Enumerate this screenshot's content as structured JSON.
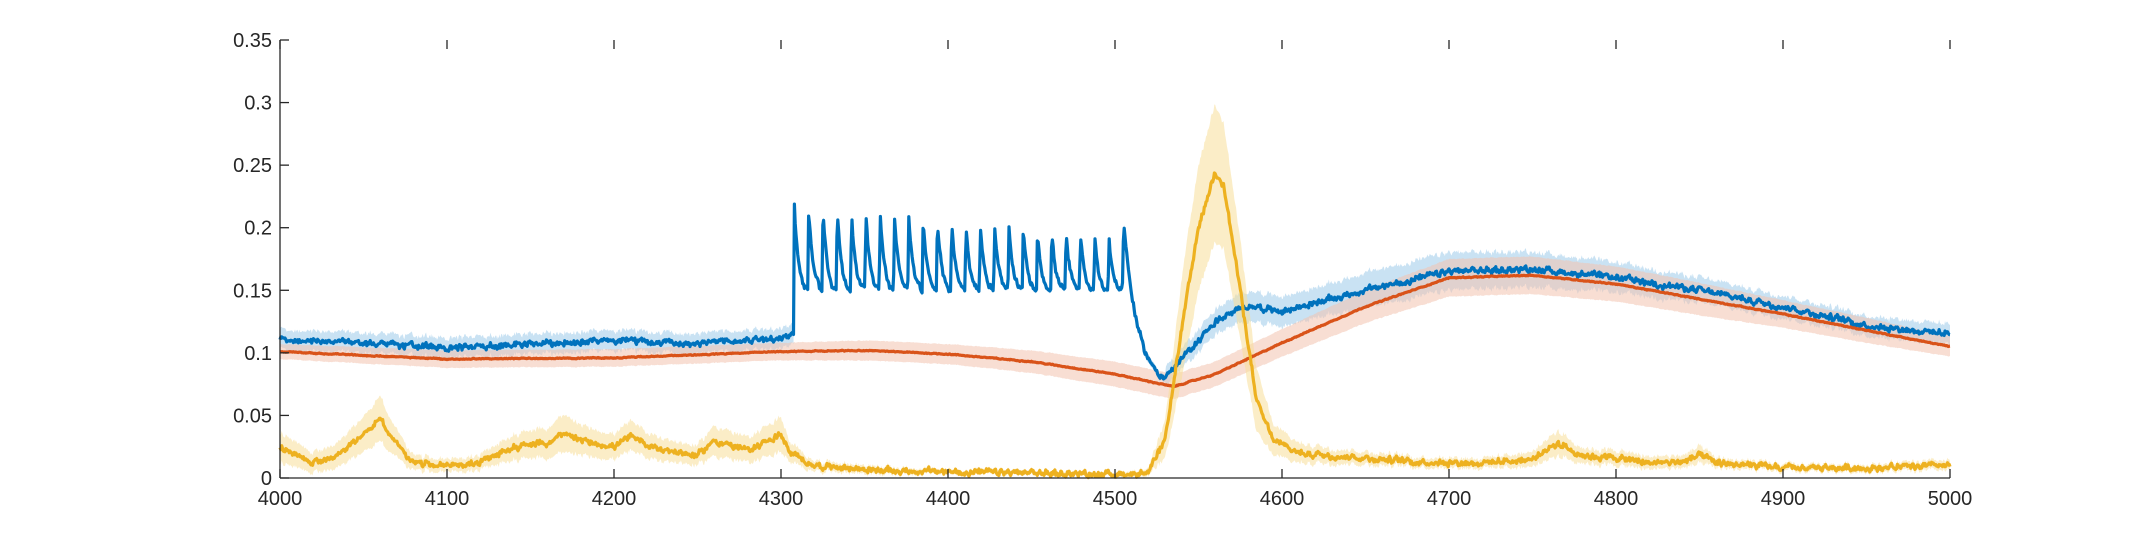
{
  "chart_data": {
    "type": "line",
    "title": "",
    "xlabel": "",
    "ylabel": "",
    "xlim": [
      4000,
      5000
    ],
    "ylim": [
      0,
      0.35
    ],
    "xticks": [
      4000,
      4100,
      4200,
      4300,
      4400,
      4500,
      4600,
      4700,
      4800,
      4900,
      5000
    ],
    "yticks": [
      0,
      0.05,
      0.1,
      0.15,
      0.2,
      0.25,
      0.3,
      0.35
    ],
    "xtick_labels": [
      "4000",
      "4100",
      "4200",
      "4300",
      "4400",
      "4500",
      "4600",
      "4700",
      "4800",
      "4900",
      "5000"
    ],
    "ytick_labels": [
      "0",
      "0.05",
      "0.1",
      "0.15",
      "0.2",
      "0.25",
      "0.3",
      "0.35"
    ],
    "grid": false,
    "box": false,
    "series": [
      {
        "color": "#0072BD",
        "band_color": "#9DCBEA",
        "noise": 0.004,
        "sawtooth": {
          "start": 4308,
          "end": 4505,
          "peaks": 23,
          "peak": 0.218,
          "trough": 0.148,
          "decay_to": 0.08,
          "decay_end": 4530
        },
        "x": [
          4000,
          4050,
          4100,
          4150,
          4200,
          4250,
          4300,
          4307,
          4530,
          4540,
          4560,
          4580,
          4600,
          4620,
          4650,
          4700,
          4750,
          4800,
          4850,
          4900,
          4950,
          5000
        ],
        "y": [
          0.11,
          0.108,
          0.104,
          0.107,
          0.11,
          0.108,
          0.112,
          0.115,
          0.08,
          0.095,
          0.125,
          0.138,
          0.133,
          0.14,
          0.15,
          0.165,
          0.167,
          0.16,
          0.15,
          0.137,
          0.122,
          0.115
        ],
        "band": [
          0.008,
          0.008,
          0.008,
          0.008,
          0.008,
          0.008,
          0.008,
          0.008,
          0.008,
          0.008,
          0.01,
          0.012,
          0.012,
          0.012,
          0.014,
          0.015,
          0.014,
          0.012,
          0.01,
          0.009,
          0.008,
          0.008
        ]
      },
      {
        "color": "#D95319",
        "band_color": "#F2C2AE",
        "noise": 0.0006,
        "x": [
          4000,
          4100,
          4200,
          4300,
          4350,
          4400,
          4450,
          4500,
          4535,
          4560,
          4600,
          4650,
          4700,
          4750,
          4800,
          4850,
          4900,
          4950,
          5000
        ],
        "y": [
          0.101,
          0.095,
          0.096,
          0.101,
          0.102,
          0.099,
          0.093,
          0.083,
          0.073,
          0.083,
          0.108,
          0.137,
          0.16,
          0.162,
          0.155,
          0.143,
          0.131,
          0.118,
          0.105
        ],
        "band": [
          0.006,
          0.007,
          0.007,
          0.007,
          0.008,
          0.008,
          0.009,
          0.01,
          0.01,
          0.01,
          0.011,
          0.013,
          0.015,
          0.015,
          0.014,
          0.013,
          0.011,
          0.01,
          0.008
        ]
      },
      {
        "color": "#EDB120",
        "band_color": "#F7DE99",
        "noise": 0.004,
        "x": [
          4000,
          4010,
          4020,
          4035,
          4050,
          4060,
          4068,
          4080,
          4100,
          4120,
          4140,
          4160,
          4170,
          4180,
          4200,
          4210,
          4220,
          4240,
          4250,
          4260,
          4280,
          4300,
          4305,
          4320,
          4360,
          4400,
          4450,
          4500,
          4520,
          4530,
          4540,
          4550,
          4560,
          4565,
          4575,
          4585,
          4595,
          4610,
          4630,
          4680,
          4720,
          4750,
          4765,
          4780,
          4800,
          4820,
          4840,
          4850,
          4860,
          4900,
          4950,
          5000
        ],
        "y": [
          0.025,
          0.018,
          0.012,
          0.018,
          0.035,
          0.048,
          0.03,
          0.012,
          0.01,
          0.012,
          0.025,
          0.028,
          0.035,
          0.03,
          0.025,
          0.033,
          0.026,
          0.02,
          0.018,
          0.03,
          0.022,
          0.035,
          0.02,
          0.01,
          0.006,
          0.005,
          0.004,
          0.003,
          0.004,
          0.03,
          0.12,
          0.2,
          0.245,
          0.235,
          0.15,
          0.06,
          0.03,
          0.02,
          0.018,
          0.013,
          0.012,
          0.015,
          0.028,
          0.018,
          0.016,
          0.012,
          0.013,
          0.018,
          0.012,
          0.008,
          0.008,
          0.01
        ],
        "band": [
          0.012,
          0.01,
          0.008,
          0.01,
          0.014,
          0.018,
          0.012,
          0.006,
          0.005,
          0.006,
          0.01,
          0.012,
          0.015,
          0.012,
          0.01,
          0.012,
          0.01,
          0.008,
          0.008,
          0.012,
          0.01,
          0.014,
          0.008,
          0.004,
          0.003,
          0.002,
          0.002,
          0.002,
          0.003,
          0.015,
          0.04,
          0.05,
          0.055,
          0.05,
          0.04,
          0.025,
          0.012,
          0.008,
          0.006,
          0.004,
          0.004,
          0.006,
          0.01,
          0.006,
          0.006,
          0.005,
          0.005,
          0.007,
          0.004,
          0.003,
          0.003,
          0.004
        ]
      }
    ]
  }
}
